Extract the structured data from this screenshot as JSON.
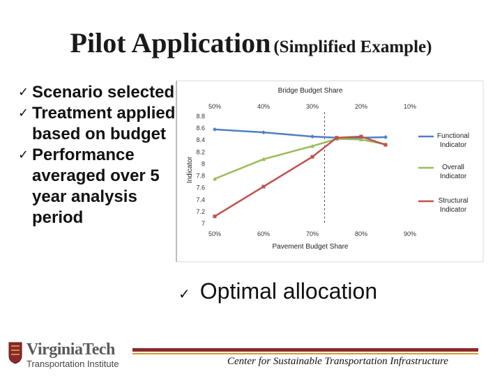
{
  "slide": {
    "title_main": "Pilot Application",
    "title_sub": "(Simplified Example)",
    "bullets": [
      {
        "text": "Scenario selected"
      },
      {
        "text": "Treatment applied based on budget"
      },
      {
        "text": "Performance averaged over 5 year analysis period"
      }
    ],
    "optimal": "Optimal allocation",
    "check_glyph": "✓",
    "logo_name": "VirginiaTech",
    "logo_institute": "Transportation Institute",
    "footer": "Center for Sustainable Transportation Infrastructure"
  },
  "chart_data": {
    "type": "line",
    "title": "Bridge Budget Share",
    "xlabel": "Pavement Budget Share",
    "ylabel": "Indicator",
    "x_ticks": [
      "50%",
      "60%",
      "70%",
      "80%",
      "90%"
    ],
    "top_ticks": [
      "50%",
      "40%",
      "30%",
      "20%",
      "10%"
    ],
    "xlim": [
      50,
      90
    ],
    "ylim": [
      7,
      8.8
    ],
    "y_ticks": [
      "7",
      "7.2",
      "7.4",
      "7.6",
      "7.8",
      "8",
      "8.2",
      "8.4",
      "8.6",
      "8.8"
    ],
    "series": [
      {
        "name": "Functional Indicator",
        "color": "#4f7fc2",
        "x": [
          50,
          60,
          70,
          75,
          80,
          85
        ],
        "y": [
          8.58,
          8.53,
          8.46,
          8.44,
          8.44,
          8.45
        ]
      },
      {
        "name": "Overall Indicator",
        "color": "#9bbb59",
        "x": [
          50,
          60,
          70,
          75,
          80,
          85
        ],
        "y": [
          7.75,
          8.08,
          8.3,
          8.42,
          8.41,
          8.33
        ]
      },
      {
        "name": "Structural Indicator",
        "color": "#c0504d",
        "x": [
          50,
          60,
          70,
          75,
          80,
          85
        ],
        "y": [
          7.12,
          7.62,
          8.12,
          8.44,
          8.46,
          8.32
        ]
      }
    ],
    "optimal_x": 72.5,
    "legend": "right"
  }
}
